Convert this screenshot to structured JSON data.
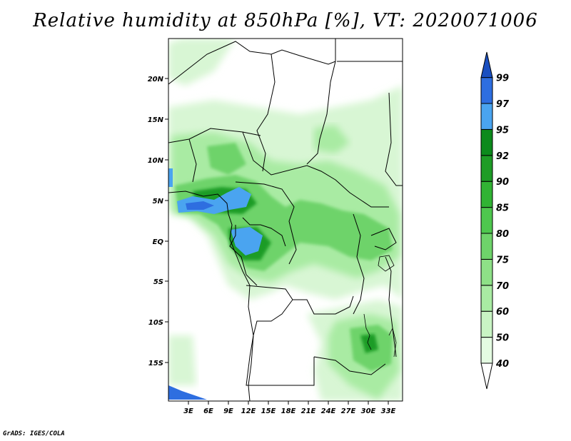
{
  "title": "Relative humidity at 850hPa [%], VT: 2020071006",
  "credit": "GrADS: IGES/COLA",
  "map": {
    "lon_labels": [
      "3E",
      "6E",
      "9E",
      "12E",
      "15E",
      "18E",
      "21E",
      "24E",
      "27E",
      "30E",
      "33E"
    ],
    "lat_labels": [
      "20N",
      "15N",
      "10N",
      "5N",
      "EQ",
      "5S",
      "10S",
      "15S"
    ]
  },
  "colorbar": {
    "levels": [
      "40",
      "50",
      "60",
      "70",
      "75",
      "80",
      "85",
      "90",
      "92",
      "95",
      "97",
      "99"
    ],
    "colors": [
      "#ffffff",
      "#e4fbe2",
      "#c9f4c4",
      "#a9eba3",
      "#8ee087",
      "#6ed36a",
      "#4ec74e",
      "#31b334",
      "#1e9c26",
      "#0c8a1c",
      "#4aa4f0",
      "#2e6ee0",
      "#1a4fc0"
    ]
  }
}
